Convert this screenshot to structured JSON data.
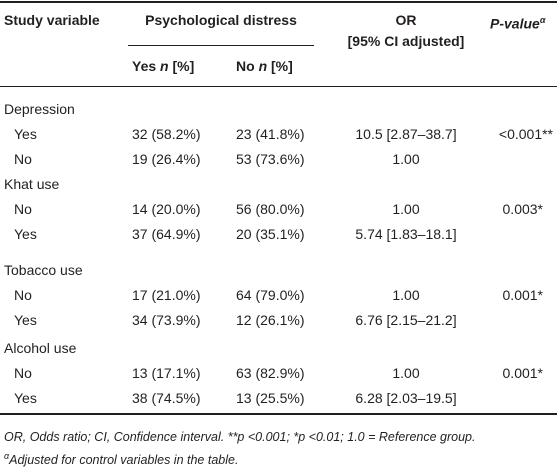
{
  "header": {
    "study_variable": "Study variable",
    "psych_distress": "Psychological distress",
    "or_line1": "OR",
    "or_line2": "[95% CI adjusted]",
    "pvalue_label": "P-value",
    "pvalue_sup": "α",
    "yes_label_pre": "Yes ",
    "yes_label_n": "n",
    "yes_label_post": " [%]",
    "no_label_pre": "No ",
    "no_label_n": "n",
    "no_label_post": " [%]"
  },
  "groups": [
    {
      "name": "Depression",
      "rows": [
        {
          "label": "Yes",
          "yes": "32 (58.2%)",
          "no": "23 (41.8%)",
          "or": "10.5 [2.87–38.7]",
          "p": "<0.001**"
        },
        {
          "label": "No",
          "yes": "19 (26.4%)",
          "no": "53 (73.6%)",
          "or": "1.00",
          "p": ""
        }
      ]
    },
    {
      "name": "Khat use",
      "rows": [
        {
          "label": "No",
          "yes": "14 (20.0%)",
          "no": "56 (80.0%)",
          "or": "1.00",
          "p": "0.003*"
        },
        {
          "label": "Yes",
          "yes": "37 (64.9%)",
          "no": "20 (35.1%)",
          "or": "5.74 [1.83–18.1]",
          "p": ""
        }
      ]
    },
    {
      "name": "Tobacco use",
      "rows": [
        {
          "label": "No",
          "yes": "17 (21.0%)",
          "no": "64 (79.0%)",
          "or": "1.00",
          "p": "0.001*"
        },
        {
          "label": "Yes",
          "yes": "34 (73.9%)",
          "no": "12 (26.1%)",
          "or": "6.76 [2.15–21.2]",
          "p": ""
        }
      ]
    },
    {
      "name": "Alcohol use",
      "rows": [
        {
          "label": "No",
          "yes": "13 (17.1%)",
          "no": "63 (82.9%)",
          "or": "1.00",
          "p": "0.001*"
        },
        {
          "label": "Yes",
          "yes": "38 (74.5%)",
          "no": "13 (25.5%)",
          "or": "6.28 [2.03–19.5]",
          "p": ""
        }
      ]
    }
  ],
  "footnote1": "OR, Odds ratio; CI, Confidence interval. **p <0.001; *p <0.01; 1.0 = Reference group.",
  "footnote2_sup": "α",
  "footnote2": "Adjusted for control variables in the table."
}
